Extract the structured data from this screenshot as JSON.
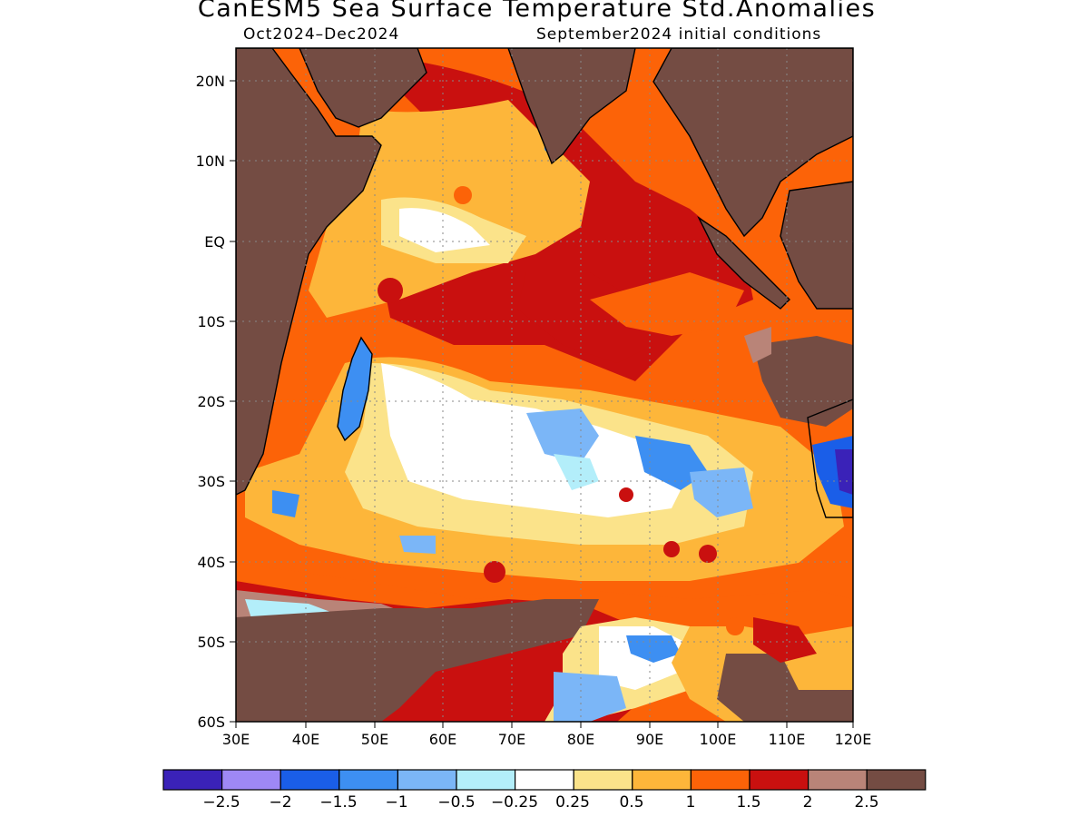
{
  "title": "CanESM5 Sea Surface Temperature Std.Anomalies",
  "period": "Oct2024–Dec2024",
  "initial_conditions": "September2024 initial conditions",
  "map": {
    "lon_labels": [
      "30E",
      "40E",
      "50E",
      "60E",
      "70E",
      "80E",
      "90E",
      "100E",
      "110E",
      "120E"
    ],
    "lat_labels": [
      "20N",
      "10N",
      "EQ",
      "10S",
      "20S",
      "30S",
      "40S",
      "50S",
      "60S"
    ],
    "lon_range": [
      30,
      120
    ],
    "lat_range": [
      -60,
      24
    ],
    "grid": "dotted",
    "land_color": "#7b4b40"
  },
  "colorbar": {
    "colors": [
      "#3a22b8",
      "#9e88f5",
      "#1a5ee8",
      "#3d8ff2",
      "#7bb6f7",
      "#b3eefa",
      "#ffffff",
      "#fbe38a",
      "#fdb63a",
      "#fc6308",
      "#c9100f",
      "#b98478",
      "#744c43"
    ],
    "labels": [
      "−2.5",
      "−2",
      "−1.5",
      "−1",
      "−0.5",
      "−0.25",
      "0.25",
      "0.5",
      "1",
      "1.5",
      "2",
      "2.5"
    ]
  }
}
